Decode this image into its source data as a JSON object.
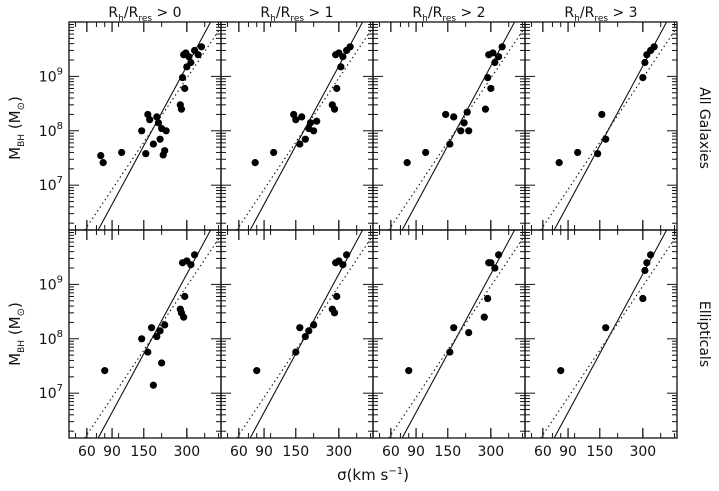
{
  "figure": {
    "xlabel_main": "σ(km s",
    "xlabel_exp": "−1",
    "xlabel_close": ")",
    "ylabel_main": "M",
    "ylabel_sub": "BH",
    "ylabel_unit": " (M",
    "ylabel_unit_sub": "⊙",
    "ylabel_unit_close": ")",
    "row_labels": [
      "All Galaxies",
      "Ellipticals"
    ],
    "column_titles": [
      {
        "pre": "R",
        "sub1": "h",
        "mid": "/R",
        "sub2": "res",
        "post": " > 0"
      },
      {
        "pre": "R",
        "sub1": "h",
        "mid": "/R",
        "sub2": "res",
        "post": " > 1"
      },
      {
        "pre": "R",
        "sub1": "h",
        "mid": "/R",
        "sub2": "res",
        "post": " > 2"
      },
      {
        "pre": "R",
        "sub1": "h",
        "mid": "/R",
        "sub2": "res",
        "post": " > 3"
      }
    ],
    "x_tick_labels": [
      "60",
      "90",
      "150",
      "300"
    ],
    "y_tick_labels": [
      {
        "base": "10",
        "exp": "7"
      },
      {
        "base": "10",
        "exp": "8"
      },
      {
        "base": "10",
        "exp": "9"
      }
    ]
  },
  "chart_data": {
    "type": "scatter",
    "x_scale": "log",
    "y_scale": "log",
    "xlim": [
      45,
      520
    ],
    "ylim": [
      1500000,
      10000000000
    ],
    "x_ticks": [
      60,
      90,
      150,
      300
    ],
    "y_ticks": [
      10000000,
      100000000,
      1000000000
    ],
    "grid": false,
    "fit_lines": [
      {
        "style": "solid",
        "points": [
          [
            72,
            1500000
          ],
          [
            440,
            10000000000
          ]
        ]
      },
      {
        "style": "dotted",
        "points": [
          [
            58,
            1500000
          ],
          [
            520,
            8000000000
          ]
        ]
      }
    ],
    "panels": [
      {
        "row": "All Galaxies",
        "column": "R_h/R_res > 0",
        "x": [
          75,
          78,
          105,
          145,
          155,
          160,
          165,
          175,
          185,
          190,
          195,
          200,
          205,
          210,
          215,
          270,
          275,
          280,
          285,
          290,
          295,
          300,
          310,
          320,
          340,
          360,
          380
        ],
        "y": [
          35000000,
          26000000,
          40000000,
          100000000,
          38000000,
          200000000,
          160000000,
          57000000,
          180000000,
          140000000,
          70000000,
          110000000,
          36000000,
          43000000,
          100000000,
          300000000,
          250000000,
          950000000,
          2500000000,
          600000000,
          2700000000,
          1500000000,
          2300000000,
          1800000000,
          3000000000,
          2500000000,
          3500000000
        ]
      },
      {
        "row": "All Galaxies",
        "column": "R_h/R_res > 1",
        "x": [
          78,
          105,
          145,
          150,
          160,
          165,
          175,
          185,
          190,
          200,
          210,
          270,
          280,
          285,
          290,
          300,
          310,
          320,
          340,
          360
        ],
        "y": [
          26000000,
          40000000,
          200000000,
          160000000,
          57000000,
          180000000,
          70000000,
          110000000,
          140000000,
          100000000,
          150000000,
          300000000,
          250000000,
          2500000000,
          600000000,
          2700000000,
          1500000000,
          2300000000,
          3000000000,
          3500000000
        ]
      },
      {
        "row": "All Galaxies",
        "column": "R_h/R_res > 2",
        "x": [
          78,
          105,
          145,
          155,
          165,
          185,
          195,
          205,
          210,
          275,
          285,
          290,
          300,
          310,
          320,
          340,
          360
        ],
        "y": [
          26000000,
          40000000,
          200000000,
          57000000,
          180000000,
          100000000,
          140000000,
          220000000,
          100000000,
          250000000,
          950000000,
          2500000000,
          600000000,
          2700000000,
          1800000000,
          2300000000,
          3500000000
        ]
      },
      {
        "row": "All Galaxies",
        "column": "R_h/R_res > 3",
        "x": [
          78,
          105,
          145,
          155,
          165,
          300,
          310,
          320,
          340,
          360
        ],
        "y": [
          26000000,
          40000000,
          38000000,
          200000000,
          70000000,
          950000000,
          1800000000,
          2500000000,
          3000000000,
          3500000000
        ]
      },
      {
        "row": "Ellipticals",
        "column": "R_h/R_res > 0",
        "x": [
          80,
          145,
          160,
          170,
          175,
          185,
          195,
          200,
          210,
          270,
          275,
          280,
          285,
          290,
          300,
          320,
          340
        ],
        "y": [
          26000000,
          100000000,
          57000000,
          160000000,
          14000000,
          110000000,
          140000000,
          36000000,
          180000000,
          350000000,
          300000000,
          2500000000,
          250000000,
          600000000,
          2700000000,
          2300000000,
          3500000000
        ]
      },
      {
        "row": "Ellipticals",
        "column": "R_h/R_res > 1",
        "x": [
          80,
          150,
          160,
          175,
          185,
          200,
          270,
          280,
          285,
          290,
          300,
          320,
          340
        ],
        "y": [
          26000000,
          57000000,
          160000000,
          110000000,
          140000000,
          180000000,
          350000000,
          300000000,
          2500000000,
          600000000,
          2700000000,
          2300000000,
          3500000000
        ]
      },
      {
        "row": "Ellipticals",
        "column": "R_h/R_res > 2",
        "x": [
          80,
          155,
          165,
          210,
          270,
          285,
          290,
          300,
          320,
          340
        ],
        "y": [
          26000000,
          57000000,
          160000000,
          130000000,
          250000000,
          550000000,
          2500000000,
          2500000000,
          2000000000,
          3500000000
        ]
      },
      {
        "row": "Ellipticals",
        "column": "R_h/R_res > 3",
        "x": [
          80,
          165,
          300,
          310,
          320,
          340
        ],
        "y": [
          26000000,
          160000000,
          550000000,
          1800000000,
          2500000000,
          3500000000
        ]
      }
    ]
  }
}
